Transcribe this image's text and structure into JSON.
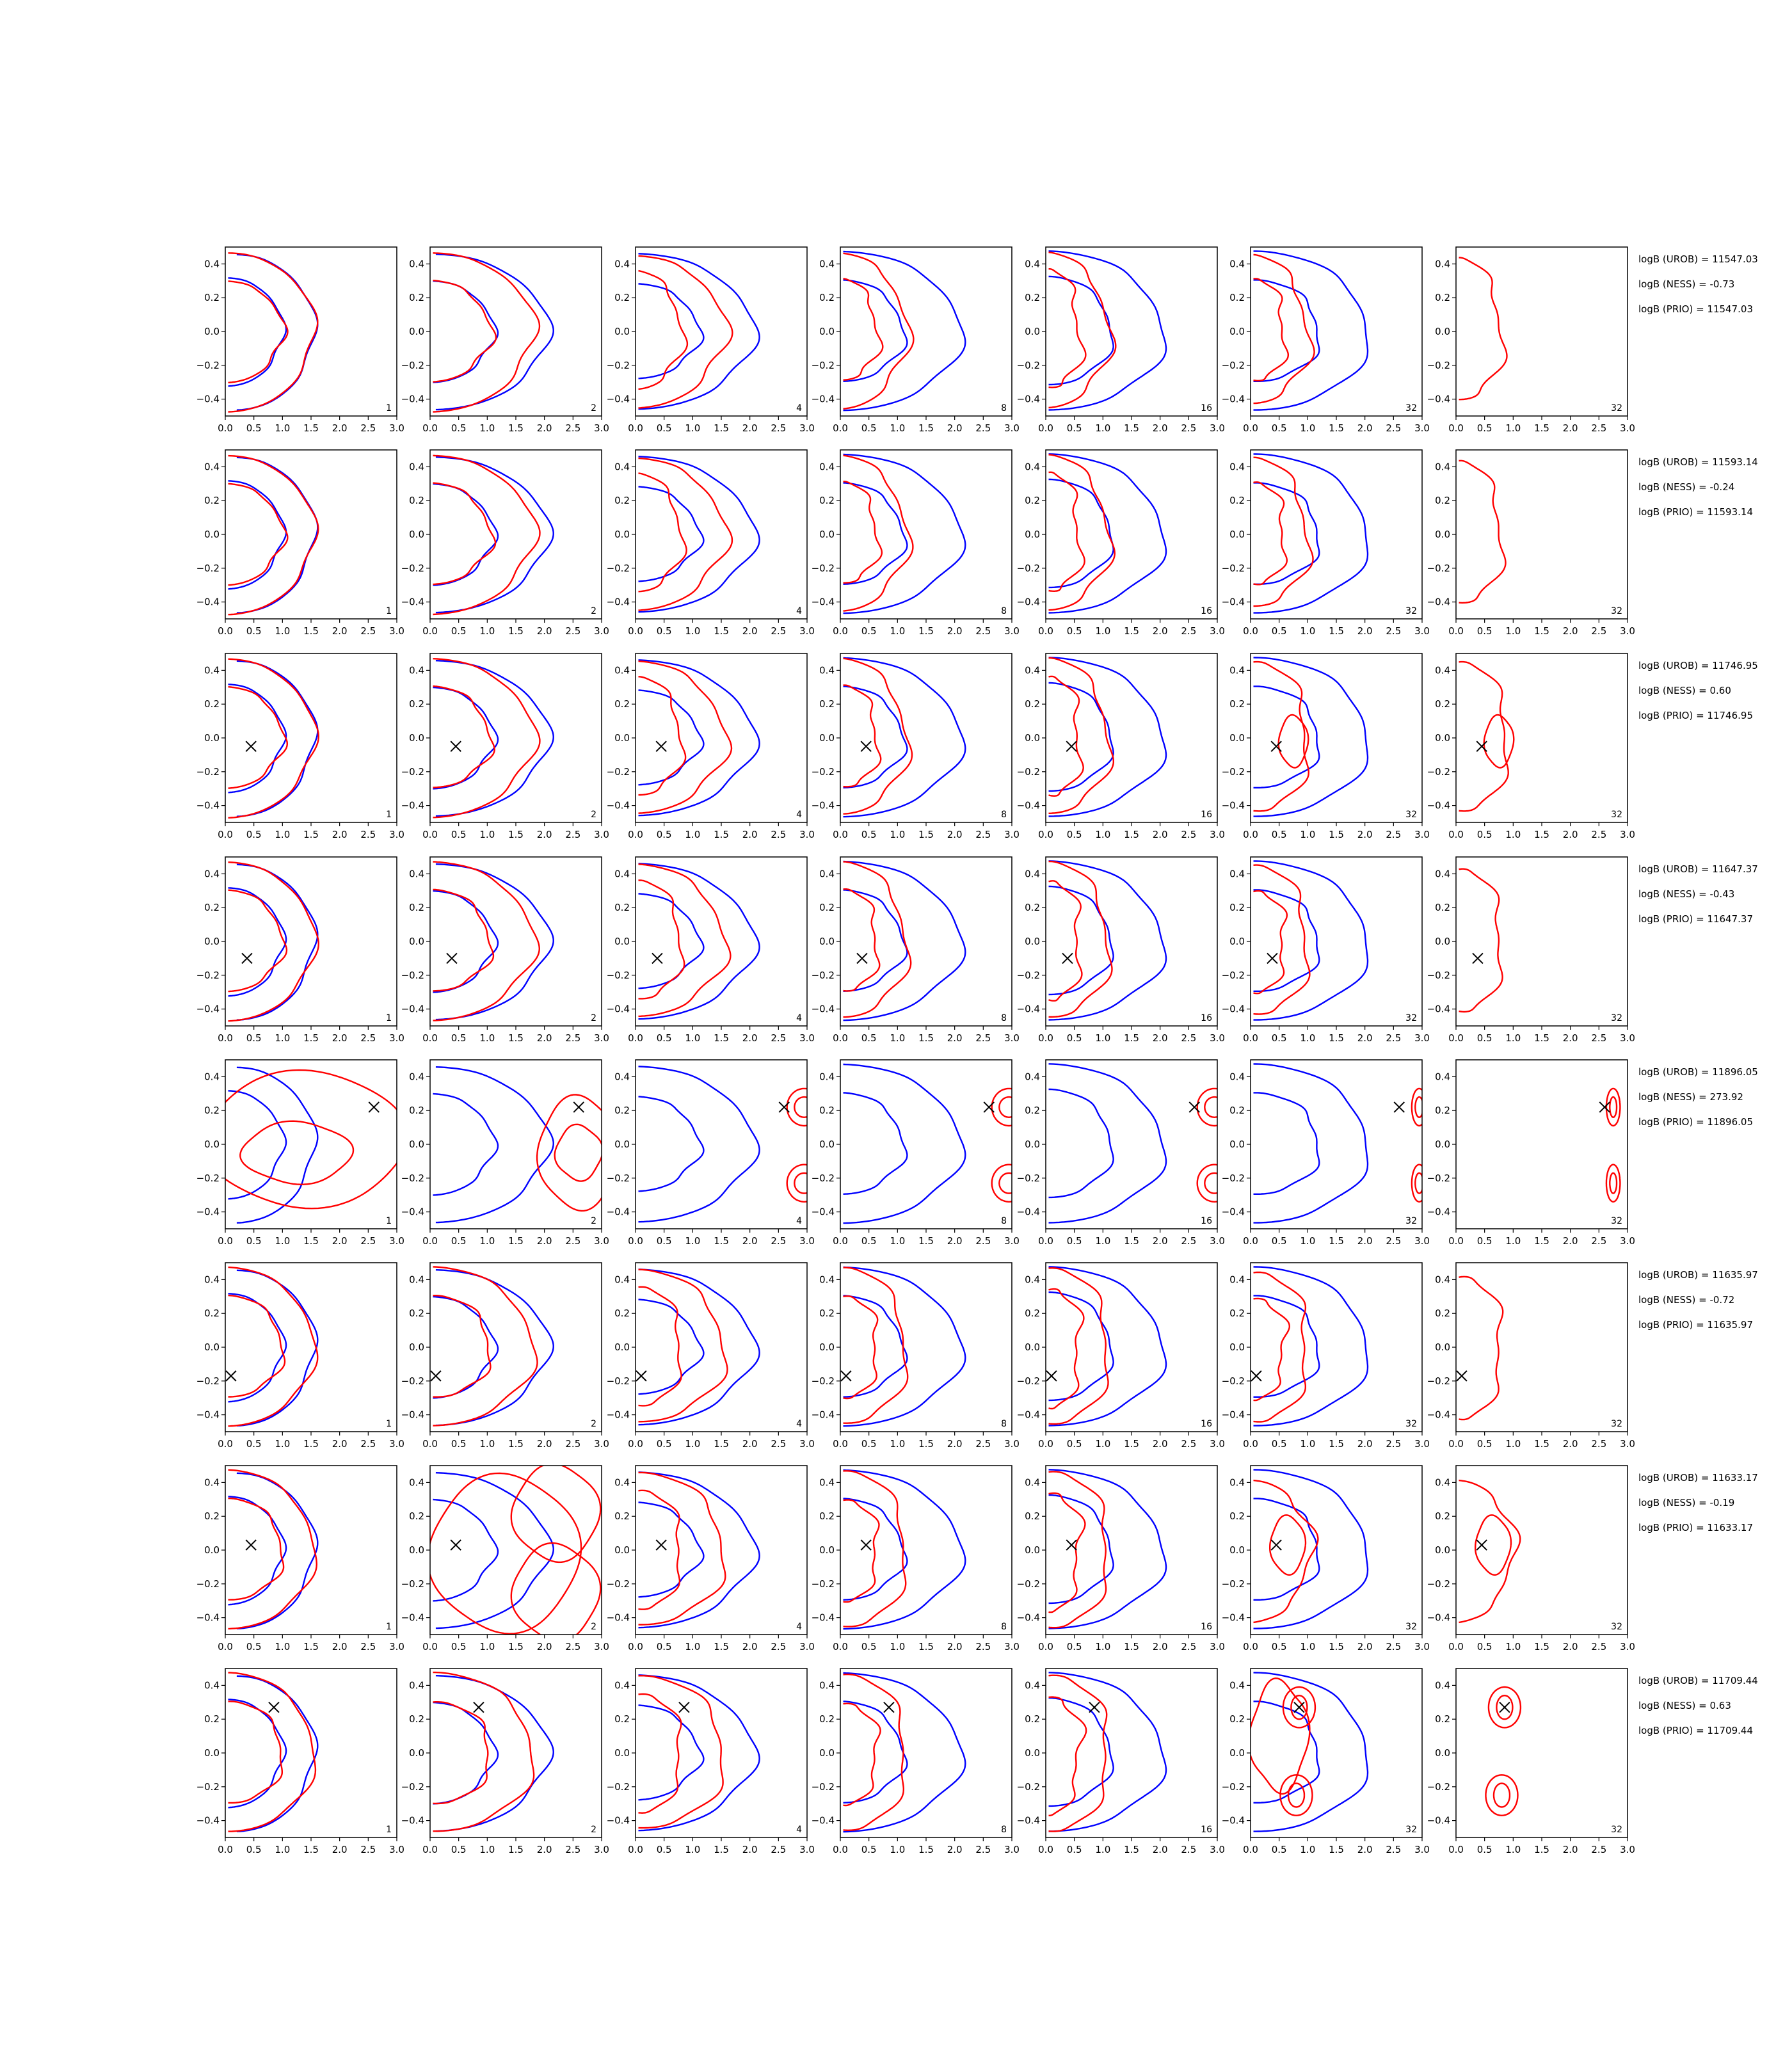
{
  "chart_data": {
    "type": "contour-grid",
    "title": "",
    "xlabel": "",
    "ylabel": "",
    "xlim": [
      0.0,
      3.0
    ],
    "ylim": [
      -0.5,
      0.5
    ],
    "xticks": [
      "0.0",
      "0.5",
      "1.0",
      "1.5",
      "2.0",
      "2.5",
      "3.0"
    ],
    "yticks": [
      "0.4",
      "0.2",
      "0.0",
      "−0.2",
      "−0.4"
    ],
    "grid": false,
    "legend": "none",
    "colors": {
      "blue_contour": "#0000ff",
      "red_contour": "#ff0000",
      "marker": "#000000"
    },
    "column_labels": [
      "1",
      "2",
      "4",
      "8",
      "16",
      "32",
      "32"
    ],
    "rows": [
      {
        "marker": null,
        "annotations": [
          "logB (UROB) = 11547.03",
          "logB (NESS) = -0.73",
          "logB (PRIO) = 11547.03"
        ]
      },
      {
        "marker": null,
        "annotations": [
          "logB (UROB) = 11593.14",
          "logB (NESS) = -0.24",
          "logB (PRIO) = 11593.14"
        ]
      },
      {
        "marker": [
          0.45,
          -0.05
        ],
        "annotations": [
          "logB (UROB) = 11746.95",
          "logB (NESS) = 0.60",
          "logB (PRIO) = 11746.95"
        ]
      },
      {
        "marker": [
          0.38,
          -0.1
        ],
        "annotations": [
          "logB (UROB) = 11647.37",
          "logB (NESS) = -0.43",
          "logB (PRIO) = 11647.37"
        ]
      },
      {
        "marker": [
          2.6,
          0.22
        ],
        "annotations": [
          "logB (UROB) = 11896.05",
          "logB (NESS) = 273.92",
          "logB (PRIO) = 11896.05"
        ]
      },
      {
        "marker": [
          0.1,
          -0.17
        ],
        "annotations": [
          "logB (UROB) = 11635.97",
          "logB (NESS) = -0.72",
          "logB (PRIO) = 11635.97"
        ]
      },
      {
        "marker": [
          0.45,
          0.03
        ],
        "annotations": [
          "logB (UROB) = 11633.17",
          "logB (NESS) = -0.19",
          "logB (PRIO) = 11633.17"
        ]
      },
      {
        "marker": [
          0.85,
          0.27
        ],
        "annotations": [
          "logB (UROB) = 11709.44",
          "logB (NESS) = 0.63",
          "logB (PRIO) = 11709.44"
        ]
      }
    ]
  }
}
